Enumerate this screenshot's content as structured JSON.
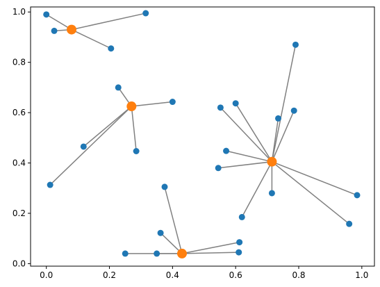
{
  "chart_data": {
    "type": "scatter",
    "title": "",
    "xlabel": "",
    "ylabel": "",
    "xlim": [
      -0.05,
      1.04
    ],
    "ylim": [
      -0.01,
      1.02
    ],
    "x_ticks": [
      "0.0",
      "0.2",
      "0.4",
      "0.6",
      "0.8",
      "1.0"
    ],
    "y_ticks": [
      "0.0",
      "0.2",
      "0.4",
      "0.6",
      "0.8",
      "1.0"
    ],
    "x_tick_values": [
      0.0,
      0.2,
      0.4,
      0.6,
      0.8,
      1.0
    ],
    "y_tick_values": [
      0.0,
      0.2,
      0.4,
      0.6,
      0.8,
      1.0
    ],
    "grid": false,
    "colors": {
      "points": "#1f77b4",
      "centers": "#ff7f0e",
      "links": "#808080"
    },
    "clusters": [
      {
        "center": [
          0.08,
          0.93
        ],
        "points": [
          [
            0.0,
            0.99
          ],
          [
            0.025,
            0.925
          ],
          [
            0.315,
            0.995
          ],
          [
            0.205,
            0.855
          ]
        ]
      },
      {
        "center": [
          0.27,
          0.625
        ],
        "points": [
          [
            0.228,
            0.7
          ],
          [
            0.4,
            0.643
          ],
          [
            0.285,
            0.447
          ],
          [
            0.118,
            0.465
          ],
          [
            0.012,
            0.313
          ]
        ]
      },
      {
        "center": [
          0.715,
          0.405
        ],
        "points": [
          [
            0.79,
            0.87
          ],
          [
            0.6,
            0.637
          ],
          [
            0.552,
            0.62
          ],
          [
            0.785,
            0.608
          ],
          [
            0.735,
            0.577
          ],
          [
            0.57,
            0.448
          ],
          [
            0.545,
            0.38
          ],
          [
            0.715,
            0.28
          ],
          [
            0.62,
            0.185
          ],
          [
            0.985,
            0.272
          ],
          [
            0.96,
            0.158
          ]
        ]
      },
      {
        "center": [
          0.43,
          0.04
        ],
        "points": [
          [
            0.375,
            0.305
          ],
          [
            0.362,
            0.122
          ],
          [
            0.25,
            0.04
          ],
          [
            0.35,
            0.04
          ],
          [
            0.612,
            0.085
          ],
          [
            0.61,
            0.045
          ]
        ]
      }
    ]
  }
}
